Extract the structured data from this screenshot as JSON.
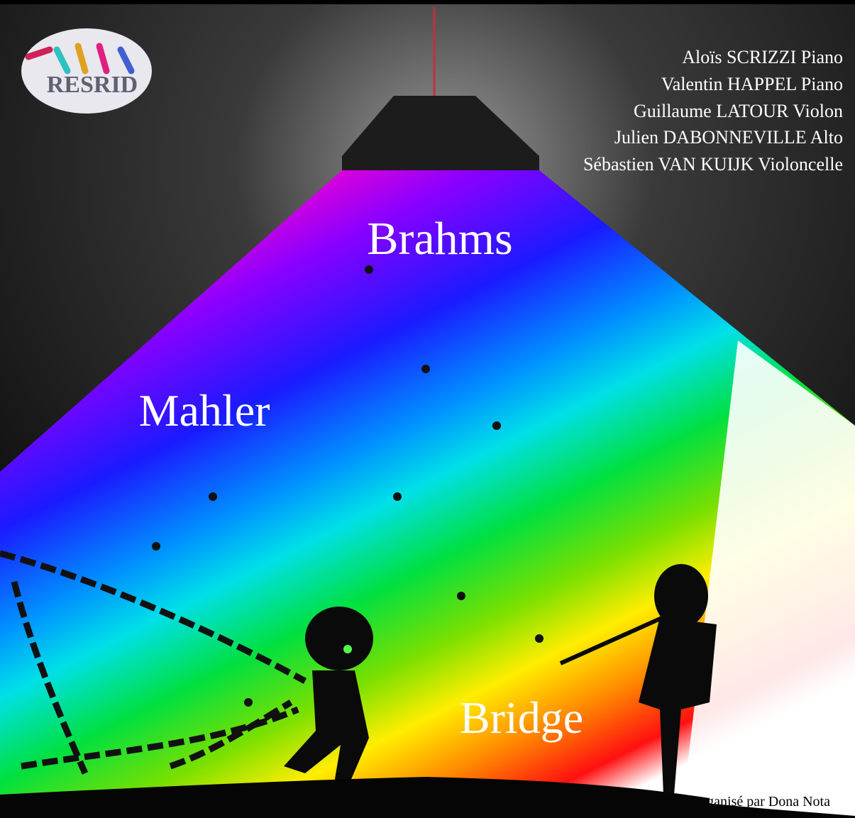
{
  "logo": {
    "text": "RESRID"
  },
  "performers": [
    "Aloïs SCRIZZI Piano",
    "Valentin HAPPEL Piano",
    "Guillaume LATOUR Violon",
    "Julien DABONNEVILLE Alto",
    "Sébastien VAN KUIJK Violoncelle"
  ],
  "composers": [
    "Brahms",
    "Mahler",
    "Bridge"
  ],
  "footer": "Organisé par Dona Nota"
}
